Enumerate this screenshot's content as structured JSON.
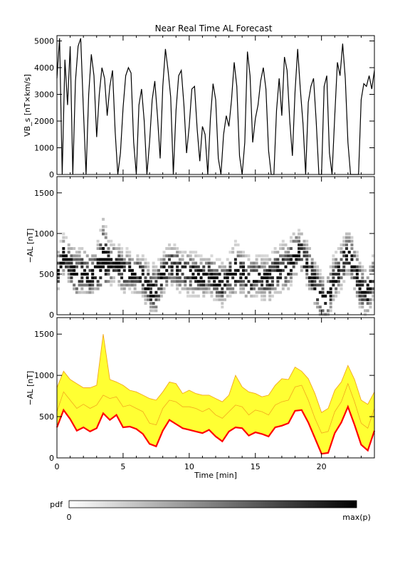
{
  "chart_data": [
    {
      "type": "line",
      "title": "Near Real Time AL Forecast",
      "ylabel": "VB_s [nT×km/s]",
      "xlim": [
        0,
        24
      ],
      "ylim": [
        0,
        5200
      ],
      "yticks": [
        0,
        1000,
        2000,
        3000,
        4000,
        5000
      ],
      "series": [
        {
          "x": [
            0,
            0.2,
            0.4,
            0.6,
            0.8,
            1.0,
            1.2,
            1.4,
            1.6,
            1.8,
            2.0,
            2.2,
            2.4,
            2.6,
            2.8,
            3.0,
            3.2,
            3.4,
            3.6,
            3.8,
            4.0,
            4.2,
            4.4,
            4.6,
            4.8,
            5.0,
            5.2,
            5.4,
            5.6,
            5.8,
            6.0,
            6.2,
            6.4,
            6.6,
            6.8,
            7.0,
            7.2,
            7.4,
            7.6,
            7.8,
            8.0,
            8.2,
            8.4,
            8.6,
            8.8,
            9.0,
            9.2,
            9.4,
            9.6,
            9.8,
            10.0,
            10.2,
            10.4,
            10.6,
            10.8,
            11.0,
            11.2,
            11.4,
            11.6,
            11.8,
            12.0,
            12.2,
            12.4,
            12.6,
            12.8,
            13.0,
            13.2,
            13.4,
            13.6,
            13.8,
            14.0,
            14.2,
            14.4,
            14.6,
            14.8,
            15.0,
            15.2,
            15.4,
            15.6,
            15.8,
            16.0,
            16.2,
            16.4,
            16.6,
            16.8,
            17.0,
            17.2,
            17.4,
            17.6,
            17.8,
            18.0,
            18.2,
            18.4,
            18.6,
            18.8,
            19.0,
            19.2,
            19.4,
            19.6,
            19.8,
            20.0,
            20.2,
            20.4,
            20.6,
            20.8,
            21.0,
            21.2,
            21.4,
            21.6,
            21.8,
            22.0,
            22.2,
            22.4,
            22.6,
            22.8,
            23.0,
            23.2,
            23.4,
            23.6,
            23.8,
            24.0
          ],
          "values": [
            3600,
            5100,
            0,
            4300,
            2600,
            4800,
            0,
            3500,
            4800,
            5100,
            2400,
            0,
            3000,
            4500,
            3700,
            1400,
            3000,
            4000,
            3600,
            2200,
            3300,
            3900,
            1600,
            0,
            800,
            2500,
            3700,
            4000,
            3800,
            1200,
            0,
            2600,
            3200,
            2000,
            0,
            1200,
            2800,
            3500,
            2200,
            600,
            3300,
            4700,
            3900,
            2900,
            0,
            2400,
            3700,
            3900,
            2600,
            800,
            1800,
            3200,
            3300,
            1700,
            500,
            1800,
            1500,
            0,
            2100,
            3400,
            2800,
            600,
            0,
            1500,
            2200,
            1800,
            2800,
            4200,
            3300,
            700,
            0,
            1200,
            4600,
            3700,
            1200,
            2100,
            2600,
            3500,
            4000,
            3200,
            900,
            0,
            0,
            2400,
            3600,
            2200,
            4400,
            3900,
            2000,
            700,
            3100,
            4700,
            3200,
            1900,
            0,
            2700,
            3300,
            3600,
            2000,
            0,
            0,
            3300,
            3700,
            800,
            0,
            2200,
            4200,
            3700,
            4900,
            3600,
            1200,
            0,
            0,
            0,
            0,
            2800,
            3400,
            3300,
            3700,
            3200,
            3900
          ]
        }
      ]
    },
    {
      "type": "heatmap",
      "ylabel": "−AL [nT]",
      "xlim": [
        0,
        24
      ],
      "ylim": [
        0,
        1700
      ],
      "yticks": [
        0,
        500,
        1000,
        1500
      ]
    },
    {
      "type": "area",
      "xlabel": "Time [min]",
      "ylabel": "−AL [nT]",
      "xlim": [
        0,
        24
      ],
      "ylim": [
        0,
        1700
      ],
      "xticks": [
        0,
        5,
        10,
        15,
        20
      ],
      "yticks": [
        0,
        500,
        1000,
        1500
      ],
      "colors": {
        "band": "#ffff33",
        "band_edge": "#f2a71c",
        "median": "#ff0000"
      },
      "x": [
        0,
        0.5,
        1,
        1.5,
        2,
        2.5,
        3,
        3.5,
        4,
        4.5,
        5,
        5.5,
        6,
        6.5,
        7,
        7.5,
        8,
        8.5,
        9,
        9.5,
        10,
        10.5,
        11,
        11.5,
        12,
        12.5,
        13,
        13.5,
        14,
        14.5,
        15,
        15.5,
        16,
        16.5,
        17,
        17.5,
        18,
        18.5,
        19,
        19.5,
        20,
        20.5,
        21,
        21.5,
        22,
        22.5,
        23,
        23.5,
        24
      ],
      "series": [
        {
          "values": [
            370,
            580,
            470,
            330,
            370,
            320,
            360,
            540,
            460,
            520,
            370,
            380,
            350,
            290,
            170,
            140,
            330,
            460,
            410,
            360,
            340,
            320,
            300,
            340,
            260,
            200,
            320,
            370,
            360,
            270,
            310,
            290,
            260,
            370,
            390,
            420,
            570,
            580,
            430,
            240,
            50,
            60,
            300,
            430,
            620,
            400,
            160,
            90,
            330
          ]
        },
        {
          "values": [
            560,
            800,
            700,
            600,
            650,
            600,
            640,
            760,
            720,
            740,
            620,
            640,
            600,
            560,
            420,
            400,
            600,
            700,
            680,
            620,
            620,
            600,
            560,
            600,
            520,
            480,
            560,
            640,
            620,
            520,
            580,
            560,
            520,
            640,
            680,
            700,
            860,
            880,
            700,
            480,
            300,
            320,
            560,
            680,
            900,
            680,
            420,
            360,
            600
          ]
        },
        {
          "values": [
            850,
            1050,
            950,
            900,
            850,
            850,
            880,
            1500,
            950,
            920,
            880,
            820,
            800,
            760,
            720,
            700,
            800,
            920,
            900,
            780,
            820,
            780,
            760,
            760,
            720,
            680,
            760,
            1000,
            860,
            800,
            780,
            740,
            760,
            880,
            960,
            950,
            1100,
            1050,
            960,
            780,
            550,
            600,
            820,
            920,
            1120,
            950,
            700,
            650,
            800
          ]
        }
      ]
    }
  ],
  "colorbar": {
    "label": "pdf",
    "min_label": "0",
    "max_label": "max(p)"
  }
}
